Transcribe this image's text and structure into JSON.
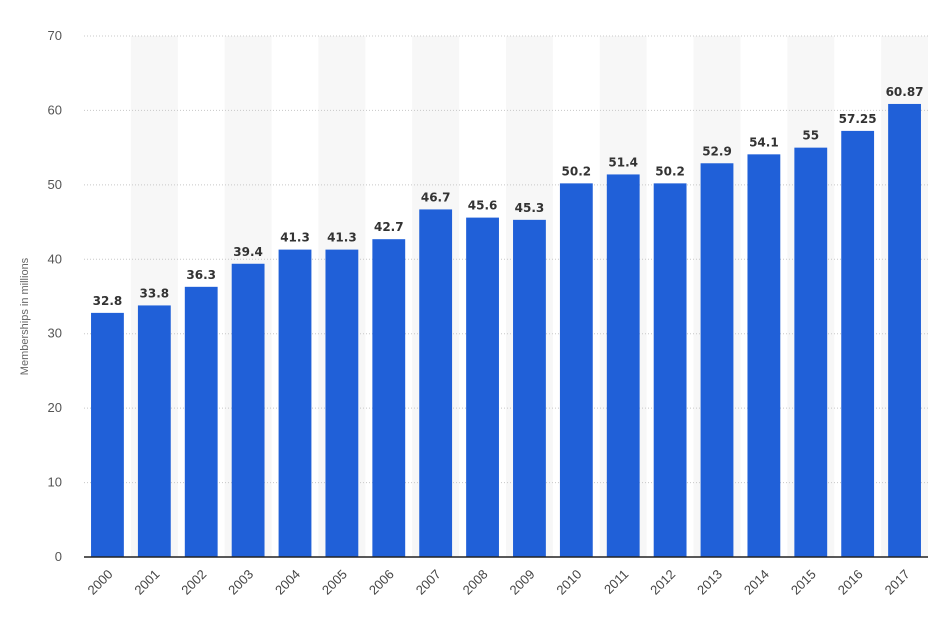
{
  "chart_data": {
    "type": "bar",
    "ylabel": "Memberships in millions",
    "ylim": [
      0,
      70
    ],
    "yticks": [
      0,
      10,
      20,
      30,
      40,
      50,
      60,
      70
    ],
    "categories": [
      "2000",
      "2001",
      "2002",
      "2003",
      "2004",
      "2005",
      "2006",
      "2007",
      "2008",
      "2009",
      "2010",
      "2011",
      "2012",
      "2013",
      "2014",
      "2015",
      "2016",
      "2017"
    ],
    "values": [
      32.8,
      33.8,
      36.3,
      39.4,
      41.3,
      41.3,
      42.7,
      46.7,
      45.6,
      45.3,
      50.2,
      51.4,
      50.2,
      52.9,
      54.1,
      55,
      57.25,
      60.87
    ],
    "value_labels": [
      "32.8",
      "33.8",
      "36.3",
      "39.4",
      "41.3",
      "41.3",
      "42.7",
      "46.7",
      "45.6",
      "45.3",
      "50.2",
      "51.4",
      "50.2",
      "52.9",
      "54.1",
      "55",
      "57.25",
      "60.87"
    ],
    "bar_color": "#2060d8",
    "alternating_band_color": "#f7f7f7",
    "grid": true,
    "grid_style": "dotted",
    "legend": "none"
  }
}
